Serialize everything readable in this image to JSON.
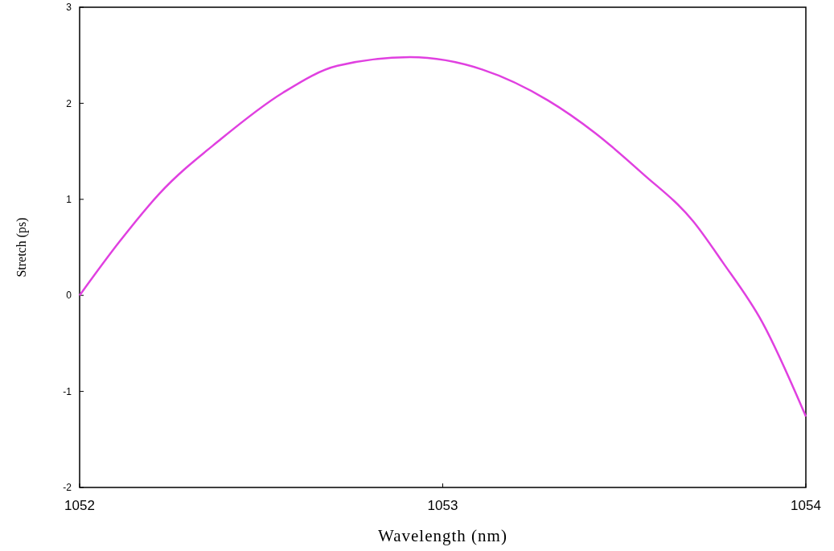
{
  "chart_data": {
    "type": "line",
    "xlabel": "Wavelength (nm)",
    "ylabel": "Stretch (ps)",
    "x": [
      1052,
      1052.11,
      1052.22,
      1052.39,
      1052.56,
      1052.71,
      1052.91,
      1053.11,
      1053.29,
      1053.42,
      1053.55,
      1053.69,
      1053.77,
      1053.88,
      1054
    ],
    "series": [
      {
        "color": "#e040e0",
        "values": [
          0,
          0.56,
          1.06,
          1.63,
          2.11,
          2.39,
          2.48,
          2.35,
          2.03,
          1.69,
          1.27,
          0.77,
          0.35,
          -0.28,
          -1.26
        ]
      }
    ],
    "xlim": [
      1052,
      1054
    ],
    "xticks": [
      1052,
      1053,
      1054
    ],
    "ylim": [
      -2,
      3
    ],
    "yticks": [
      -2,
      -1,
      0,
      1,
      2,
      3
    ],
    "grid": false,
    "line_style": "solid"
  }
}
